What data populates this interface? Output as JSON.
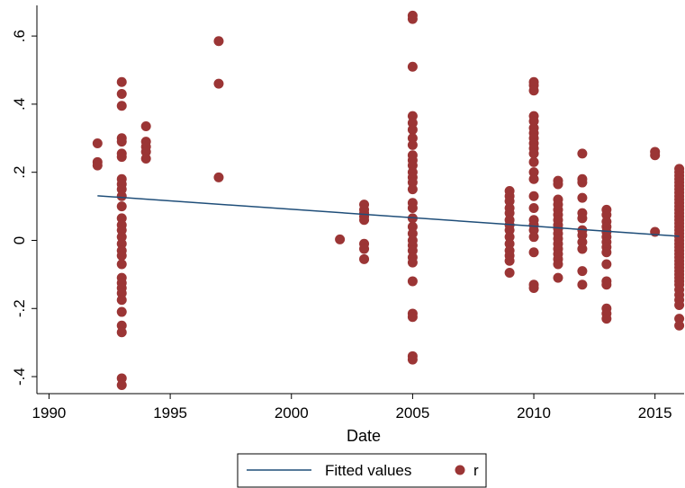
{
  "chart_data": {
    "type": "scatter",
    "title": "",
    "xlabel": "Date",
    "ylabel": "",
    "xlim": [
      1989.5,
      2016.2
    ],
    "ylim": [
      -0.45,
      0.69
    ],
    "grid": false,
    "legend_position": "bottom",
    "x_ticks": [
      1990,
      1995,
      2000,
      2005,
      2010,
      2015
    ],
    "x_tick_labels": [
      "1990",
      "1995",
      "2000",
      "2005",
      "2010",
      "2015"
    ],
    "y_ticks": [
      -0.4,
      -0.2,
      0,
      0.2,
      0.4,
      0.6
    ],
    "y_tick_labels": [
      "-.4",
      "-.2",
      "0",
      ".2",
      ".4",
      ".6"
    ],
    "series": [
      {
        "name": "Fitted values",
        "kind": "line",
        "color": "#1f4e79",
        "points": [
          [
            1992,
            0.131
          ],
          [
            2016,
            0.012
          ]
        ]
      },
      {
        "name": "r",
        "kind": "scatter",
        "color": "#9b3535",
        "points": [
          [
            1992,
            0.285
          ],
          [
            1992,
            0.23
          ],
          [
            1992,
            0.22
          ],
          [
            1993,
            0.465
          ],
          [
            1993,
            0.43
          ],
          [
            1993,
            0.395
          ],
          [
            1993,
            0.3
          ],
          [
            1993,
            0.29
          ],
          [
            1993,
            0.255
          ],
          [
            1993,
            0.245
          ],
          [
            1993,
            0.18
          ],
          [
            1993,
            0.165
          ],
          [
            1993,
            0.15
          ],
          [
            1993,
            0.13
          ],
          [
            1993,
            0.1
          ],
          [
            1993,
            0.065
          ],
          [
            1993,
            0.045
          ],
          [
            1993,
            0.03
          ],
          [
            1993,
            0.01
          ],
          [
            1993,
            -0.01
          ],
          [
            1993,
            -0.03
          ],
          [
            1993,
            -0.045
          ],
          [
            1993,
            -0.07
          ],
          [
            1993,
            -0.11
          ],
          [
            1993,
            -0.125
          ],
          [
            1993,
            -0.14
          ],
          [
            1993,
            -0.155
          ],
          [
            1993,
            -0.175
          ],
          [
            1993,
            -0.21
          ],
          [
            1993,
            -0.25
          ],
          [
            1993,
            -0.27
          ],
          [
            1993,
            -0.405
          ],
          [
            1993,
            -0.425
          ],
          [
            1994,
            0.335
          ],
          [
            1994,
            0.29
          ],
          [
            1994,
            0.275
          ],
          [
            1994,
            0.26
          ],
          [
            1994,
            0.24
          ],
          [
            1997,
            0.585
          ],
          [
            1997,
            0.46
          ],
          [
            1997,
            0.185
          ],
          [
            2002,
            0.003
          ],
          [
            2003,
            0.105
          ],
          [
            2003,
            0.09
          ],
          [
            2003,
            0.08
          ],
          [
            2003,
            0.07
          ],
          [
            2003,
            0.06
          ],
          [
            2003,
            -0.01
          ],
          [
            2003,
            -0.025
          ],
          [
            2003,
            -0.055
          ],
          [
            2005,
            0.66
          ],
          [
            2005,
            0.65
          ],
          [
            2005,
            0.51
          ],
          [
            2005,
            0.365
          ],
          [
            2005,
            0.345
          ],
          [
            2005,
            0.325
          ],
          [
            2005,
            0.3
          ],
          [
            2005,
            0.28
          ],
          [
            2005,
            0.25
          ],
          [
            2005,
            0.235
          ],
          [
            2005,
            0.22
          ],
          [
            2005,
            0.2
          ],
          [
            2005,
            0.185
          ],
          [
            2005,
            0.17
          ],
          [
            2005,
            0.15
          ],
          [
            2005,
            0.11
          ],
          [
            2005,
            0.095
          ],
          [
            2005,
            0.065
          ],
          [
            2005,
            0.04
          ],
          [
            2005,
            0.02
          ],
          [
            2005,
            0.0
          ],
          [
            2005,
            -0.015
          ],
          [
            2005,
            -0.03
          ],
          [
            2005,
            -0.05
          ],
          [
            2005,
            -0.065
          ],
          [
            2005,
            -0.12
          ],
          [
            2005,
            -0.215
          ],
          [
            2005,
            -0.225
          ],
          [
            2005,
            -0.34
          ],
          [
            2005,
            -0.35
          ],
          [
            2009,
            0.145
          ],
          [
            2009,
            0.13
          ],
          [
            2009,
            0.115
          ],
          [
            2009,
            0.095
          ],
          [
            2009,
            0.08
          ],
          [
            2009,
            0.06
          ],
          [
            2009,
            0.045
          ],
          [
            2009,
            0.03
          ],
          [
            2009,
            0.01
          ],
          [
            2009,
            -0.01
          ],
          [
            2009,
            -0.03
          ],
          [
            2009,
            -0.045
          ],
          [
            2009,
            -0.06
          ],
          [
            2009,
            -0.095
          ],
          [
            2010,
            0.465
          ],
          [
            2010,
            0.455
          ],
          [
            2010,
            0.44
          ],
          [
            2010,
            0.365
          ],
          [
            2010,
            0.35
          ],
          [
            2010,
            0.33
          ],
          [
            2010,
            0.315
          ],
          [
            2010,
            0.3
          ],
          [
            2010,
            0.285
          ],
          [
            2010,
            0.27
          ],
          [
            2010,
            0.255
          ],
          [
            2010,
            0.23
          ],
          [
            2010,
            0.2
          ],
          [
            2010,
            0.18
          ],
          [
            2010,
            0.13
          ],
          [
            2010,
            0.095
          ],
          [
            2010,
            0.06
          ],
          [
            2010,
            0.045
          ],
          [
            2010,
            0.03
          ],
          [
            2010,
            0.01
          ],
          [
            2010,
            -0.035
          ],
          [
            2010,
            -0.13
          ],
          [
            2010,
            -0.14
          ],
          [
            2011,
            0.175
          ],
          [
            2011,
            0.165
          ],
          [
            2011,
            0.12
          ],
          [
            2011,
            0.105
          ],
          [
            2011,
            0.09
          ],
          [
            2011,
            0.075
          ],
          [
            2011,
            0.06
          ],
          [
            2011,
            0.045
          ],
          [
            2011,
            0.035
          ],
          [
            2011,
            0.02
          ],
          [
            2011,
            0.005
          ],
          [
            2011,
            -0.01
          ],
          [
            2011,
            -0.025
          ],
          [
            2011,
            -0.04
          ],
          [
            2011,
            -0.055
          ],
          [
            2011,
            -0.07
          ],
          [
            2011,
            -0.11
          ],
          [
            2012,
            0.255
          ],
          [
            2012,
            0.18
          ],
          [
            2012,
            0.17
          ],
          [
            2012,
            0.125
          ],
          [
            2012,
            0.08
          ],
          [
            2012,
            0.065
          ],
          [
            2012,
            0.03
          ],
          [
            2012,
            0.015
          ],
          [
            2012,
            -0.005
          ],
          [
            2012,
            -0.025
          ],
          [
            2012,
            -0.09
          ],
          [
            2012,
            -0.13
          ],
          [
            2013,
            0.09
          ],
          [
            2013,
            0.075
          ],
          [
            2013,
            0.055
          ],
          [
            2013,
            0.04
          ],
          [
            2013,
            0.025
          ],
          [
            2013,
            0.01
          ],
          [
            2013,
            -0.005
          ],
          [
            2013,
            -0.02
          ],
          [
            2013,
            -0.035
          ],
          [
            2013,
            -0.07
          ],
          [
            2013,
            -0.12
          ],
          [
            2013,
            -0.13
          ],
          [
            2013,
            -0.2
          ],
          [
            2013,
            -0.215
          ],
          [
            2013,
            -0.23
          ],
          [
            2015,
            0.26
          ],
          [
            2015,
            0.25
          ],
          [
            2015,
            0.025
          ],
          [
            2016,
            0.21
          ],
          [
            2016,
            0.2
          ],
          [
            2016,
            0.19
          ],
          [
            2016,
            0.18
          ],
          [
            2016,
            0.17
          ],
          [
            2016,
            0.16
          ],
          [
            2016,
            0.15
          ],
          [
            2016,
            0.14
          ],
          [
            2016,
            0.13
          ],
          [
            2016,
            0.12
          ],
          [
            2016,
            0.11
          ],
          [
            2016,
            0.1
          ],
          [
            2016,
            0.09
          ],
          [
            2016,
            0.08
          ],
          [
            2016,
            0.07
          ],
          [
            2016,
            0.06
          ],
          [
            2016,
            0.05
          ],
          [
            2016,
            0.04
          ],
          [
            2016,
            0.03
          ],
          [
            2016,
            0.02
          ],
          [
            2016,
            0.01
          ],
          [
            2016,
            0.0
          ],
          [
            2016,
            -0.01
          ],
          [
            2016,
            -0.02
          ],
          [
            2016,
            -0.03
          ],
          [
            2016,
            -0.04
          ],
          [
            2016,
            -0.05
          ],
          [
            2016,
            -0.06
          ],
          [
            2016,
            -0.07
          ],
          [
            2016,
            -0.08
          ],
          [
            2016,
            -0.09
          ],
          [
            2016,
            -0.1
          ],
          [
            2016,
            -0.11
          ],
          [
            2016,
            -0.12
          ],
          [
            2016,
            -0.13
          ],
          [
            2016,
            -0.145
          ],
          [
            2016,
            -0.16
          ],
          [
            2016,
            -0.175
          ],
          [
            2016,
            -0.19
          ],
          [
            2016,
            -0.23
          ],
          [
            2016,
            -0.25
          ]
        ]
      }
    ],
    "legend": [
      {
        "label": "Fitted values",
        "symbol": "line",
        "color": "#1f4e79"
      },
      {
        "label": "r",
        "symbol": "marker",
        "color": "#9b3535"
      }
    ]
  }
}
